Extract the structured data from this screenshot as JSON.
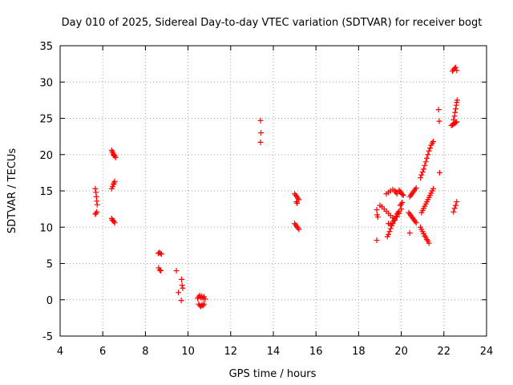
{
  "chart_data": {
    "type": "scatter",
    "title": "Day 010 of 2025, Sidereal Day-to-day VTEC variation (SDTVAR) for receiver bogt",
    "xlabel": "GPS time / hours",
    "ylabel": "SDTVAR / TECUs",
    "xlim": [
      4,
      24
    ],
    "ylim": [
      -5,
      35
    ],
    "x_ticks": [
      4,
      6,
      8,
      10,
      12,
      14,
      16,
      18,
      20,
      22,
      24
    ],
    "y_ticks": [
      -5,
      0,
      5,
      10,
      15,
      20,
      25,
      30,
      35
    ],
    "x_tick_labels": [
      "4",
      "6",
      "8",
      "10",
      "12",
      "14",
      "16",
      "18",
      "20",
      "22",
      "24"
    ],
    "y_tick_labels": [
      "-5",
      "0",
      "5",
      "10",
      "15",
      "20",
      "25",
      "30",
      "35"
    ],
    "grid": true,
    "legend": "none",
    "marker": "+",
    "color": "#ff0000",
    "series": [
      {
        "name": "s01",
        "x": [
          5.65,
          5.68,
          5.7,
          5.72,
          5.74
        ],
        "y": [
          15.3,
          14.8,
          14.2,
          13.6,
          13.1
        ]
      },
      {
        "name": "s02",
        "x": [
          5.65,
          5.68,
          5.72
        ],
        "y": [
          11.8,
          11.9,
          12.1
        ]
      },
      {
        "name": "s03",
        "x": [
          6.42,
          6.45,
          6.48,
          6.5,
          6.53,
          6.56,
          6.6
        ],
        "y": [
          20.6,
          20.4,
          20.2,
          20.0,
          19.9,
          19.8,
          19.6
        ]
      },
      {
        "name": "s04",
        "x": [
          6.42,
          6.46,
          6.5,
          6.53,
          6.56
        ],
        "y": [
          15.3,
          15.6,
          15.9,
          16.1,
          16.3
        ]
      },
      {
        "name": "s05",
        "x": [
          6.42,
          6.45,
          6.48,
          6.52,
          6.56
        ],
        "y": [
          11.2,
          11.0,
          10.9,
          10.8,
          10.6
        ]
      },
      {
        "name": "s06",
        "x": [
          8.6,
          8.65,
          8.7,
          8.75
        ],
        "y": [
          6.4,
          6.5,
          6.4,
          6.3
        ]
      },
      {
        "name": "s07",
        "x": [
          8.62,
          8.67,
          8.72
        ],
        "y": [
          4.4,
          4.1,
          4.0
        ]
      },
      {
        "name": "s08",
        "x": [
          9.45,
          9.55,
          9.7,
          9.72,
          9.75,
          9.68
        ],
        "y": [
          4.0,
          1.0,
          2.8,
          2.0,
          1.6,
          -0.1
        ]
      },
      {
        "name": "s09",
        "x": [
          10.45,
          10.5,
          10.55,
          10.6,
          10.65,
          10.7,
          10.75,
          10.8
        ],
        "y": [
          0.2,
          0.4,
          0.6,
          0.3,
          0.5,
          0.2,
          0.4,
          0.1
        ]
      },
      {
        "name": "s10",
        "x": [
          10.5,
          10.55,
          10.6,
          10.65,
          10.7,
          10.75
        ],
        "y": [
          -0.6,
          -0.8,
          -0.9,
          -0.7,
          -0.8,
          -0.6
        ]
      },
      {
        "name": "s11",
        "x": [
          13.4,
          13.42,
          13.4
        ],
        "y": [
          24.7,
          23.0,
          21.7
        ]
      },
      {
        "name": "s12",
        "x": [
          15.0,
          15.05,
          15.1,
          15.15,
          15.2,
          15.08,
          15.12
        ],
        "y": [
          14.6,
          14.4,
          14.2,
          14.0,
          13.8,
          13.5,
          13.3
        ]
      },
      {
        "name": "s13",
        "x": [
          15.0,
          15.05,
          15.1,
          15.15,
          15.2
        ],
        "y": [
          10.5,
          10.3,
          10.1,
          9.9,
          9.7
        ]
      },
      {
        "name": "s14",
        "x": [
          18.85,
          18.87,
          18.9,
          18.85
        ],
        "y": [
          12.4,
          11.7,
          11.4,
          8.2
        ]
      },
      {
        "name": "s15",
        "x": [
          19.0,
          19.1,
          19.2,
          19.3,
          19.4,
          19.5,
          19.6,
          19.7
        ],
        "y": [
          13.0,
          12.8,
          12.5,
          12.2,
          11.9,
          11.6,
          11.3,
          11.0
        ]
      },
      {
        "name": "s16",
        "x": [
          19.3,
          19.4,
          19.5,
          19.6,
          19.7,
          19.75,
          19.8
        ],
        "y": [
          14.6,
          14.8,
          15.0,
          15.2,
          15.0,
          14.8,
          14.6
        ]
      },
      {
        "name": "s17",
        "x": [
          19.35,
          19.4,
          19.45,
          19.5,
          19.55,
          19.6,
          19.65,
          19.7,
          19.75,
          19.8,
          19.85,
          19.9
        ],
        "y": [
          8.7,
          9.0,
          9.4,
          9.8,
          10.2,
          10.5,
          10.9,
          11.2,
          11.5,
          11.8,
          12.0,
          12.2
        ]
      },
      {
        "name": "s18",
        "x": [
          19.4,
          19.5,
          19.6,
          19.7,
          19.8,
          19.9,
          20.0
        ],
        "y": [
          10.5,
          10.4,
          10.7,
          11.0,
          11.4,
          11.9,
          12.5
        ]
      },
      {
        "name": "s19",
        "x": [
          19.9,
          19.95,
          20.0,
          20.05,
          20.1
        ],
        "y": [
          15.1,
          14.9,
          14.7,
          14.5,
          14.4
        ]
      },
      {
        "name": "s20",
        "x": [
          19.95,
          20.0,
          20.05
        ],
        "y": [
          13.0,
          13.2,
          13.4
        ]
      },
      {
        "name": "s21",
        "x": [
          20.4,
          20.45,
          20.5,
          20.55,
          20.6,
          20.65,
          20.7
        ],
        "y": [
          14.2,
          14.4,
          14.6,
          14.8,
          15.0,
          15.2,
          15.4
        ]
      },
      {
        "name": "s22",
        "x": [
          20.35,
          20.4,
          20.45,
          20.5,
          20.55,
          20.6,
          20.65,
          20.7
        ],
        "y": [
          12.0,
          11.8,
          11.6,
          11.4,
          11.2,
          11.0,
          10.8,
          10.6
        ]
      },
      {
        "name": "s23",
        "x": [
          20.4
        ],
        "y": [
          9.2
        ]
      },
      {
        "name": "s24",
        "x": [
          20.9,
          20.95,
          21.0,
          21.05,
          21.1,
          21.15,
          21.2,
          21.25,
          21.3,
          21.35,
          21.4,
          21.45,
          21.5
        ],
        "y": [
          16.8,
          17.2,
          17.6,
          18.0,
          18.5,
          19.0,
          19.5,
          20.0,
          20.5,
          20.9,
          21.3,
          21.6,
          21.8
        ]
      },
      {
        "name": "s25",
        "x": [
          20.9,
          20.95,
          21.0,
          21.05,
          21.1,
          21.15,
          21.2,
          21.25,
          21.3
        ],
        "y": [
          10.0,
          9.7,
          9.4,
          9.1,
          8.8,
          8.6,
          8.3,
          8.1,
          7.8
        ]
      },
      {
        "name": "s26",
        "x": [
          20.95,
          21.0,
          21.05,
          21.1,
          21.15,
          21.2,
          21.25,
          21.3,
          21.35,
          21.4,
          21.45,
          21.5
        ],
        "y": [
          12.0,
          12.3,
          12.6,
          12.9,
          13.2,
          13.5,
          13.8,
          14.1,
          14.4,
          14.7,
          15.0,
          15.3
        ]
      },
      {
        "name": "s27",
        "x": [
          21.75,
          21.78,
          21.8
        ],
        "y": [
          26.2,
          24.6,
          17.5
        ]
      },
      {
        "name": "s28",
        "x": [
          22.35,
          22.4,
          22.45,
          22.5,
          22.55,
          22.6
        ],
        "y": [
          24.0,
          24.1,
          24.2,
          24.3,
          24.4,
          24.5
        ]
      },
      {
        "name": "s29",
        "x": [
          22.45,
          22.5,
          22.52,
          22.55,
          22.58,
          22.6,
          22.62
        ],
        "y": [
          24.8,
          25.3,
          25.8,
          26.3,
          26.8,
          27.2,
          27.5
        ]
      },
      {
        "name": "s30",
        "x": [
          22.4,
          22.45,
          22.5,
          22.55,
          22.6
        ],
        "y": [
          31.5,
          31.7,
          31.9,
          32.0,
          31.6
        ]
      },
      {
        "name": "s31",
        "x": [
          22.45,
          22.5,
          22.55,
          22.6
        ],
        "y": [
          12.1,
          12.6,
          13.0,
          13.5
        ]
      }
    ]
  }
}
